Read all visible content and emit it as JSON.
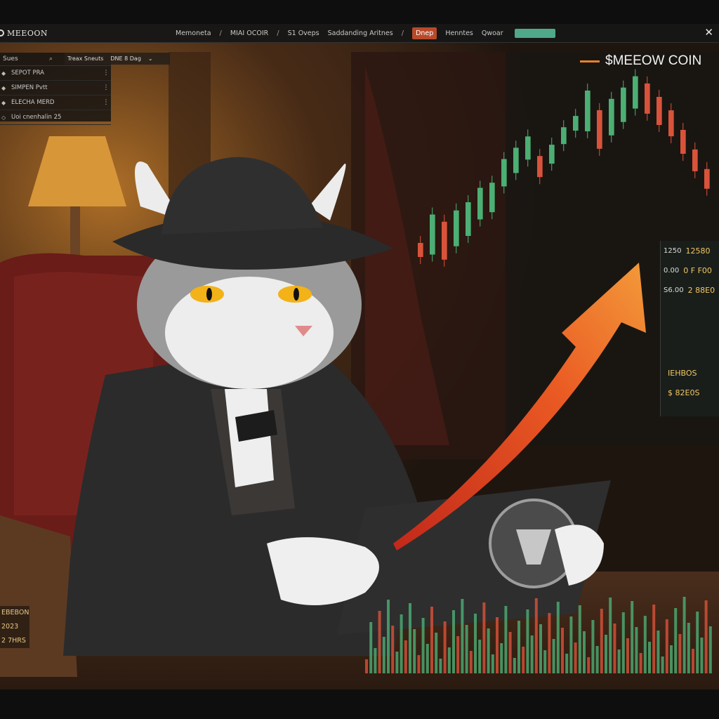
{
  "app": {
    "title": "MEEOON"
  },
  "nav": {
    "items": [
      "Memoneta",
      "MIAI OCOIR",
      "S1 Oveps",
      "Saddanding Aritnes",
      "Dnep",
      "Henntes",
      "Qwoar"
    ],
    "active_index": 4
  },
  "side": {
    "header": "Sues",
    "tab_left": "Treax Sneuts",
    "tab_right": "DNE 8 Dag",
    "rows": [
      "SEPOT PRA",
      "SIMPEN Pvtt",
      "ELECHA MERD",
      "Uoi cnenhalin 25"
    ]
  },
  "chart": {
    "title": "$MEEOW COIN",
    "accent_color": "#e8802a",
    "up_color": "#4caf74",
    "down_color": "#d9533a"
  },
  "stats": {
    "rows": [
      {
        "label": "1250",
        "value": "12580"
      },
      {
        "label": "0.00",
        "value": "0 F F00"
      },
      {
        "label": "S6.00",
        "value": "2 88E0"
      },
      {
        "label": "",
        "value": "IEHBOS"
      },
      {
        "label": "",
        "value": "$ 82E0S"
      }
    ]
  },
  "bottom_left": {
    "lines": [
      "EBEBON",
      "2023",
      "2 7HRS"
    ]
  },
  "chart_data": {
    "type": "bar",
    "title": "$MEEOW COIN",
    "candles_close_trend": [
      0.55,
      0.5,
      0.52,
      0.48,
      0.45,
      0.4,
      0.38,
      0.3,
      0.26,
      0.22,
      0.28,
      0.24,
      0.18,
      0.14,
      0.1,
      0.16,
      0.12,
      0.08,
      0.04,
      0.06,
      0.1,
      0.14,
      0.2,
      0.26,
      0.32
    ]
  }
}
